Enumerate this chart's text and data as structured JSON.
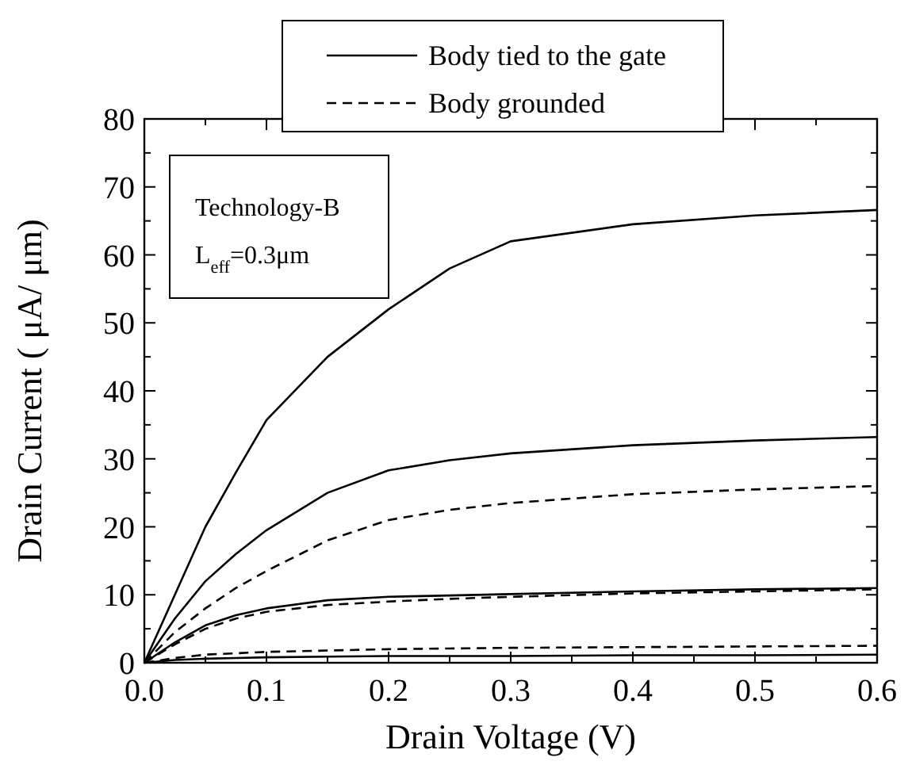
{
  "chart_data": {
    "type": "line",
    "xlabel": "Drain Voltage (V)",
    "ylabel": "Drain Current ( μA/ μm)",
    "legend": "top",
    "grid": false,
    "marker": "none",
    "annotations": [
      "Technology-B",
      "L$_{eff}$=0.3μm"
    ],
    "xlim": [
      0,
      0.6
    ],
    "ylim": [
      0,
      80
    ],
    "xticks": [
      {
        "value": 0,
        "label": "0.0"
      },
      {
        "value": 0.05,
        "label": null
      },
      {
        "value": 0.1,
        "label": "0.1"
      },
      {
        "value": 0.15,
        "label": null
      },
      {
        "value": 0.2,
        "label": "0.2"
      },
      {
        "value": 0.25,
        "label": null
      },
      {
        "value": 0.3,
        "label": "0.3"
      },
      {
        "value": 0.35,
        "label": null
      },
      {
        "value": 0.4,
        "label": "0.4"
      },
      {
        "value": 0.45,
        "label": null
      },
      {
        "value": 0.5,
        "label": "0.5"
      },
      {
        "value": 0.55,
        "label": null
      },
      {
        "value": 0.6,
        "label": "0.6"
      }
    ],
    "yticks": [
      0,
      {
        "value": 5,
        "label": null
      },
      10,
      {
        "value": 15,
        "label": null
      },
      20,
      {
        "value": 25,
        "label": null
      },
      30,
      {
        "value": 35,
        "label": null
      },
      40,
      {
        "value": 45,
        "label": null
      },
      50,
      {
        "value": 55,
        "label": null
      },
      60,
      {
        "value": 65,
        "label": null
      },
      70,
      {
        "value": 75,
        "label": null
      },
      80
    ],
    "x": [
      0,
      0.025,
      0.05,
      0.075,
      0.1,
      0.15,
      0.2,
      0.25,
      0.3,
      0.4,
      0.5,
      0.6
    ],
    "series": [
      {
        "name": "Body tied to the gate",
        "color": "#000000",
        "line_style": "solid",
        "values": [
          0,
          10,
          20,
          28,
          35.7,
          45,
          52,
          58,
          62,
          64.5,
          65.8,
          66.6
        ]
      },
      {
        "name": "Body grounded",
        "color": "#000000",
        "line_style": "dashed",
        "values": [
          0,
          4.5,
          8,
          11,
          13.5,
          18,
          21,
          22.5,
          23.5,
          24.8,
          25.5,
          26
        ]
      },
      {
        "color": "#000000",
        "line_style": "solid",
        "values": [
          0,
          6.5,
          12,
          16,
          19.5,
          25,
          28.3,
          29.8,
          30.8,
          32,
          32.7,
          33.2
        ]
      },
      {
        "color": "#000000",
        "line_style": "solid",
        "values": [
          0,
          3,
          5.5,
          7,
          8,
          9.2,
          9.7,
          9.9,
          10.1,
          10.5,
          10.8,
          11
        ]
      },
      {
        "color": "#000000",
        "line_style": "dashed",
        "values": [
          0,
          2.7,
          5,
          6.5,
          7.5,
          8.5,
          9,
          9.4,
          9.7,
          10.2,
          10.5,
          10.8
        ]
      },
      {
        "color": "#000000",
        "line_style": "dashed",
        "values": [
          0,
          0.7,
          1.2,
          1.4,
          1.6,
          1.8,
          2,
          2.1,
          2.2,
          2.3,
          2.4,
          2.5
        ]
      },
      {
        "color": "#000000",
        "line_style": "solid",
        "values": [
          0,
          0.4,
          0.6,
          0.7,
          0.8,
          0.9,
          1,
          1,
          1,
          1.1,
          1.1,
          1.2
        ]
      }
    ]
  }
}
